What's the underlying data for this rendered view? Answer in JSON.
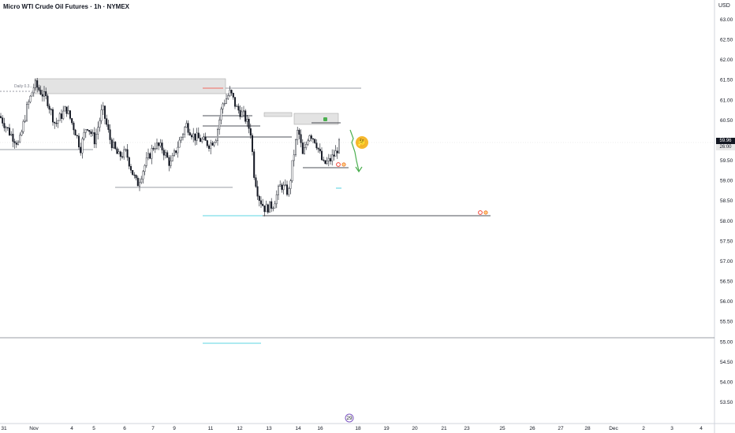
{
  "header": {
    "title": "Micro WTI Crude Oil Futures · 1h · NYMEX",
    "currency": "USD"
  },
  "price_tags": {
    "last": "59.96",
    "countdown": "26:00"
  },
  "annotation": {
    "daily_label": "Daily 0.3...",
    "emoji": "🤔",
    "target_badge": "29"
  },
  "colors": {
    "bull": "#ffffff",
    "bear": "#131722",
    "zone_fill": "#e3e3e3",
    "arrow": "#4caf50",
    "cyan": "#26c6da",
    "red": "#f44336",
    "marker": "#e65100"
  },
  "chart_data": {
    "type": "candlestick",
    "title": "Micro WTI Crude Oil Futures · 1h · NYMEX",
    "ylabel": "USD",
    "ylim": [
      53.0,
      63.5
    ],
    "y_ticks": [
      "63.00",
      "62.50",
      "62.00",
      "61.50",
      "61.00",
      "60.50",
      "60.00",
      "59.50",
      "59.00",
      "58.50",
      "58.00",
      "57.50",
      "57.00",
      "56.50",
      "56.00",
      "55.50",
      "55.00",
      "54.50",
      "54.00",
      "53.50"
    ],
    "x_ticks": [
      "31",
      "Nov",
      "4",
      "5",
      "6",
      "7",
      "9",
      "11",
      "12",
      "13",
      "14",
      "16",
      "18",
      "19",
      "20",
      "21",
      "23",
      "25",
      "26",
      "27",
      "28",
      "Dec",
      "2",
      "3",
      "4"
    ],
    "horizontal_levels": [
      61.3,
      59.85,
      58.85,
      58.1,
      55.0
    ],
    "last_price": 59.96,
    "grid": false
  }
}
